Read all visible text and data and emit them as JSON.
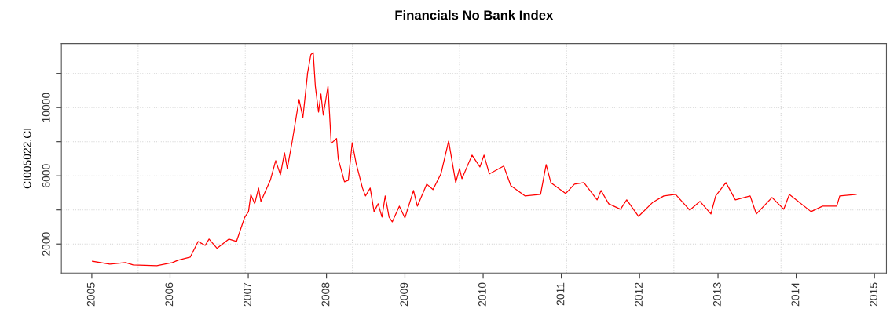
{
  "chart_data": {
    "type": "line",
    "title": "Financials No Bank Index",
    "ylabel": "CI005022.CI",
    "x": [
      "2005-01-04",
      "2005-03-26",
      "2005-06-07",
      "2005-07-13",
      "2005-10-31",
      "2006-01-12",
      "2006-02-07",
      "2006-04-05",
      "2006-05-12",
      "2006-06-14",
      "2006-07-02",
      "2006-08-08",
      "2006-10-02",
      "2006-11-07",
      "2006-12-14",
      "2007-01-02",
      "2007-01-13",
      "2007-01-31",
      "2007-02-18",
      "2007-03-01",
      "2007-04-14",
      "2007-05-09",
      "2007-05-31",
      "2007-06-19",
      "2007-07-02",
      "2007-07-24",
      "2007-08-26",
      "2007-09-13",
      "2007-10-05",
      "2007-10-20",
      "2007-10-31",
      "2007-11-10",
      "2007-11-25",
      "2007-12-06",
      "2007-12-17",
      "2008-01-08",
      "2008-01-23",
      "2008-02-17",
      "2008-02-25",
      "2008-03-25",
      "2008-04-12",
      "2008-04-30",
      "2008-05-18",
      "2008-06-17",
      "2008-07-01",
      "2008-07-23",
      "2008-08-10",
      "2008-08-29",
      "2008-09-16",
      "2008-10-01",
      "2008-10-19",
      "2008-11-03",
      "2008-12-06",
      "2009-01-01",
      "2009-02-10",
      "2009-02-28",
      "2009-04-13",
      "2009-05-12",
      "2009-06-18",
      "2009-07-24",
      "2009-08-26",
      "2009-09-13",
      "2009-09-24",
      "2009-11-10",
      "2009-12-17",
      "2010-01-05",
      "2010-01-30",
      "2010-04-07",
      "2010-05-10",
      "2010-07-15",
      "2010-09-26",
      "2010-10-22",
      "2010-11-13",
      "2011-01-21",
      "2011-03-03",
      "2011-04-16",
      "2011-06-17",
      "2011-07-05",
      "2011-08-10",
      "2011-10-04",
      "2011-11-02",
      "2011-12-27",
      "2012-03-03",
      "2012-04-23",
      "2012-06-17",
      "2012-08-22",
      "2012-10-09",
      "2012-11-29",
      "2012-12-21",
      "2013-02-07",
      "2013-03-23",
      "2013-05-31",
      "2013-06-29",
      "2013-09-10",
      "2013-11-04",
      "2013-11-30",
      "2014-03-11",
      "2014-05-04",
      "2014-07-09",
      "2014-07-23",
      "2014-10-08"
    ],
    "series": [
      {
        "color": "#ff0000",
        "values": [
          990,
          820,
          910,
          770,
          730,
          910,
          1050,
          1230,
          2150,
          1920,
          2290,
          1750,
          2290,
          2150,
          3530,
          3900,
          4900,
          4360,
          5280,
          4500,
          5740,
          6890,
          6060,
          7350,
          6430,
          7940,
          10470,
          9420,
          12040,
          13100,
          13230,
          11250,
          9740,
          10800,
          9560,
          11250,
          7900,
          8180,
          6980,
          5650,
          5740,
          7940,
          6750,
          5280,
          4820,
          5280,
          3900,
          4360,
          3580,
          4820,
          3580,
          3300,
          4220,
          3530,
          5140,
          4220,
          5510,
          5190,
          6110,
          8040,
          5600,
          6430,
          5830,
          7210,
          6520,
          7210,
          6110,
          6570,
          5420,
          4820,
          4910,
          6660,
          5600,
          4960,
          5510,
          5600,
          4590,
          5140,
          4360,
          4040,
          4590,
          3620,
          4450,
          4820,
          4910,
          3990,
          4500,
          3760,
          4820,
          5600,
          4590,
          4820,
          3760,
          4730,
          4040,
          4910,
          3900,
          4220,
          4220,
          4820,
          4910
        ]
      }
    ],
    "xlim": [
      "2004-08-12",
      "2015-02-26"
    ],
    "xticks": [
      {
        "value": "2005-01-01",
        "label": "2005"
      },
      {
        "value": "2006-01-01",
        "label": "2006"
      },
      {
        "value": "2007-01-01",
        "label": "2007"
      },
      {
        "value": "2008-01-01",
        "label": "2008"
      },
      {
        "value": "2009-01-01",
        "label": "2009"
      },
      {
        "value": "2010-01-01",
        "label": "2010"
      },
      {
        "value": "2011-01-01",
        "label": "2011"
      },
      {
        "value": "2012-01-01",
        "label": "2012"
      },
      {
        "value": "2013-01-01",
        "label": "2013"
      },
      {
        "value": "2014-01-01",
        "label": "2014"
      },
      {
        "value": "2015-01-01",
        "label": "2015"
      }
    ],
    "ylim": [
      300,
      13750
    ],
    "yticks": [
      2000,
      {
        "value": 4000,
        "label": null
      },
      6000,
      {
        "value": 8000,
        "label": null
      },
      10000,
      {
        "value": 12000,
        "label": null
      }
    ],
    "grid": "y",
    "ref_lines": [
      {
        "axis": "x",
        "value": "2005-08-05",
        "color": "#d3d3d3",
        "line_style": "dotted"
      },
      {
        "axis": "x",
        "value": "2006-12-18",
        "color": "#d3d3d3",
        "line_style": "dotted"
      },
      {
        "axis": "x",
        "value": "2008-05-01",
        "color": "#d3d3d3",
        "line_style": "dotted"
      },
      {
        "axis": "x",
        "value": "2009-09-13",
        "color": "#d3d3d3",
        "line_style": "dotted"
      },
      {
        "axis": "x",
        "value": "2011-01-26",
        "color": "#d3d3d3",
        "line_style": "dotted"
      },
      {
        "axis": "x",
        "value": "2012-06-09",
        "color": "#d3d3d3",
        "line_style": "dotted"
      },
      {
        "axis": "x",
        "value": "2013-10-22",
        "color": "#d3d3d3",
        "line_style": "dotted"
      }
    ],
    "line_style": "solid",
    "marker": "none",
    "legend": false
  }
}
